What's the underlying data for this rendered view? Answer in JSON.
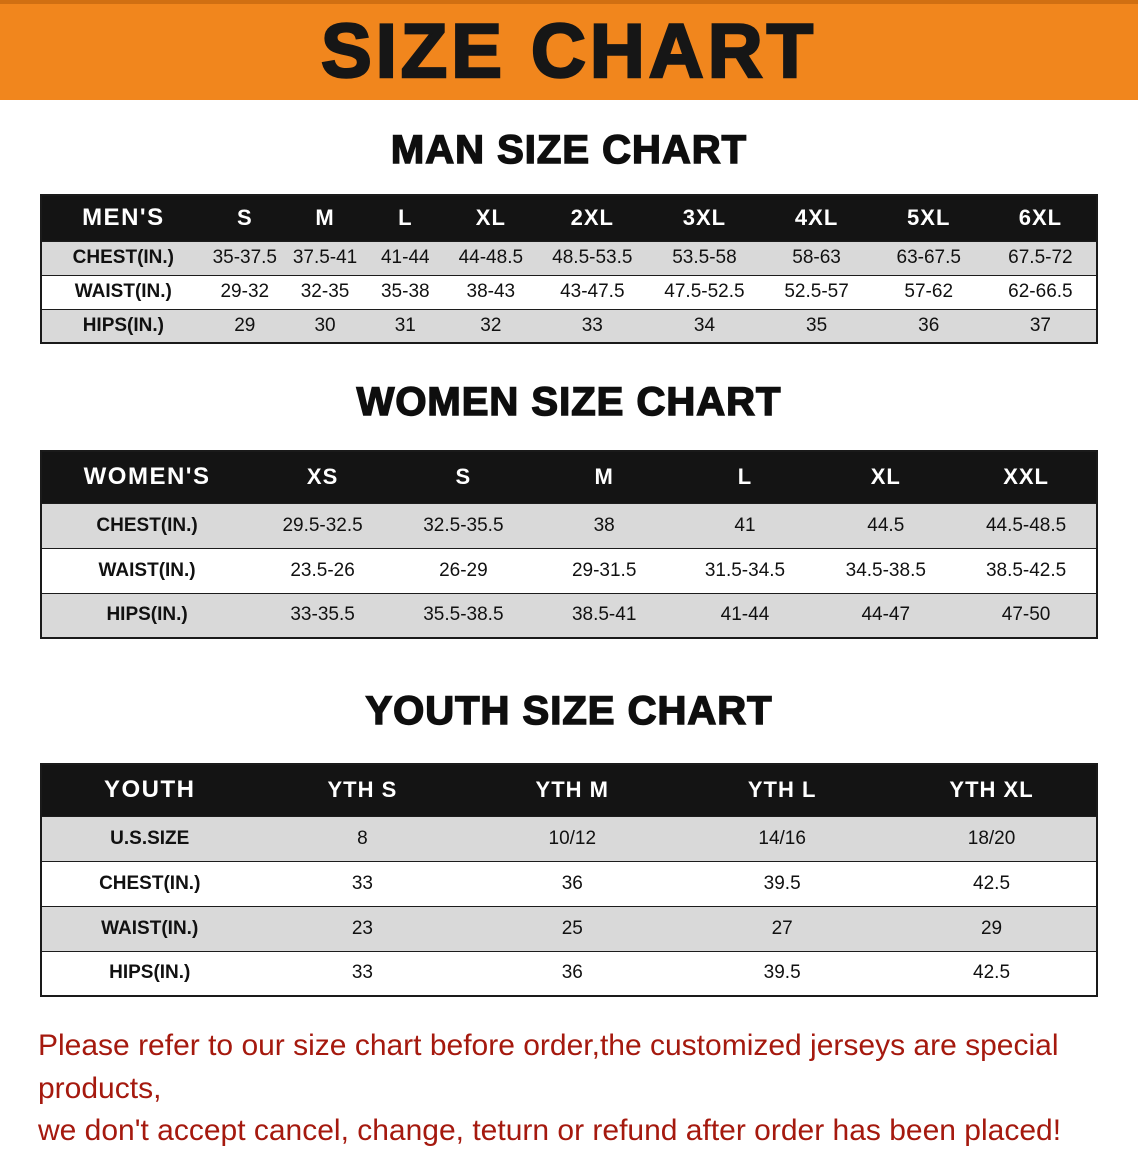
{
  "banner": {
    "title": "SIZE CHART"
  },
  "chart_data": [
    {
      "type": "table",
      "title": "MAN SIZE CHART",
      "columns": [
        "MEN'S",
        "S",
        "M",
        "L",
        "XL",
        "2XL",
        "3XL",
        "4XL",
        "5XL",
        "6XL"
      ],
      "rows": [
        [
          "CHEST(IN.)",
          "35-37.5",
          "37.5-41",
          "41-44",
          "44-48.5",
          "48.5-53.5",
          "53.5-58",
          "58-63",
          "63-67.5",
          "67.5-72"
        ],
        [
          "WAIST(IN.)",
          "29-32",
          "32-35",
          "35-38",
          "38-43",
          "43-47.5",
          "47.5-52.5",
          "52.5-57",
          "57-62",
          "62-66.5"
        ],
        [
          "HIPS(IN.)",
          "29",
          "30",
          "31",
          "32",
          "33",
          "34",
          "35",
          "36",
          "37"
        ]
      ]
    },
    {
      "type": "table",
      "title": "WOMEN SIZE CHART",
      "columns": [
        "WOMEN'S",
        "XS",
        "S",
        "M",
        "L",
        "XL",
        "XXL"
      ],
      "rows": [
        [
          "CHEST(IN.)",
          "29.5-32.5",
          "32.5-35.5",
          "38",
          "41",
          "44.5",
          "44.5-48.5"
        ],
        [
          "WAIST(IN.)",
          "23.5-26",
          "26-29",
          "29-31.5",
          "31.5-34.5",
          "34.5-38.5",
          "38.5-42.5"
        ],
        [
          "HIPS(IN.)",
          "33-35.5",
          "35.5-38.5",
          "38.5-41",
          "41-44",
          "44-47",
          "47-50"
        ]
      ]
    },
    {
      "type": "table",
      "title": "YOUTH SIZE CHART",
      "columns": [
        "YOUTH",
        "YTH S",
        "YTH M",
        "YTH L",
        "YTH XL"
      ],
      "rows": [
        [
          "U.S.SIZE",
          "8",
          "10/12",
          "14/16",
          "18/20"
        ],
        [
          "CHEST(IN.)",
          "33",
          "36",
          "39.5",
          "42.5"
        ],
        [
          "WAIST(IN.)",
          "23",
          "25",
          "27",
          "29"
        ],
        [
          "HIPS(IN.)",
          "33",
          "36",
          "39.5",
          "42.5"
        ]
      ]
    }
  ],
  "footer": {
    "line1": "Please refer to our size chart before order,the customized jerseys are special products,",
    "line2": "we don't accept cancel, change, teturn or refund after order has been placed!"
  },
  "colors": {
    "banner_orange": "#F1861D",
    "banner_edge": "#D06F12",
    "table_header_black": "#141414",
    "row_gray": "#D9D9D9",
    "footer_red": "#A5190E"
  }
}
